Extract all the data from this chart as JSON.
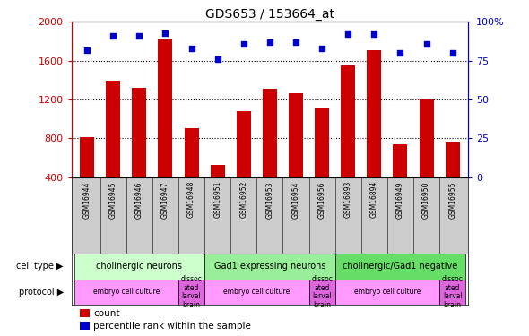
{
  "title": "GDS653 / 153664_at",
  "samples": [
    "GSM16944",
    "GSM16945",
    "GSM16946",
    "GSM16947",
    "GSM16948",
    "GSM16951",
    "GSM16952",
    "GSM16953",
    "GSM16954",
    "GSM16956",
    "GSM16893",
    "GSM16894",
    "GSM16949",
    "GSM16950",
    "GSM16955"
  ],
  "counts": [
    810,
    1390,
    1320,
    1830,
    910,
    525,
    1080,
    1315,
    1265,
    1120,
    1555,
    1705,
    740,
    1200,
    758
  ],
  "percentiles": [
    82,
    91,
    91,
    93,
    83,
    76,
    86,
    87,
    87,
    83,
    92,
    92,
    80,
    86,
    80
  ],
  "cell_types": [
    {
      "label": "cholinergic neurons",
      "start": 0,
      "end": 5,
      "color": "#ccffcc"
    },
    {
      "label": "Gad1 expressing neurons",
      "start": 5,
      "end": 10,
      "color": "#99ee99"
    },
    {
      "label": "cholinergic/Gad1 negative",
      "start": 10,
      "end": 15,
      "color": "#66dd66"
    }
  ],
  "protocols": [
    {
      "label": "embryo cell culture",
      "start": 0,
      "end": 4,
      "color": "#ff99ff"
    },
    {
      "label": "dissoc\nated\nlarval\nbrain",
      "start": 4,
      "end": 5,
      "color": "#dd66dd"
    },
    {
      "label": "embryo cell culture",
      "start": 5,
      "end": 9,
      "color": "#ff99ff"
    },
    {
      "label": "dissoc\nated\nlarval\nbrain",
      "start": 9,
      "end": 10,
      "color": "#dd66dd"
    },
    {
      "label": "embryo cell culture",
      "start": 10,
      "end": 14,
      "color": "#ff99ff"
    },
    {
      "label": "dissoc\nated\nlarval\nbrain",
      "start": 14,
      "end": 15,
      "color": "#dd66dd"
    }
  ],
  "bar_color": "#cc0000",
  "dot_color": "#0000cc",
  "left_axis_color": "#cc0000",
  "right_axis_color": "#0000cc",
  "ylim_left": [
    400,
    2000
  ],
  "ylim_right": [
    0,
    100
  ],
  "yticks_left": [
    400,
    800,
    1200,
    1600,
    2000
  ],
  "yticks_right": [
    0,
    25,
    50,
    75,
    100
  ],
  "grid_values": [
    800,
    1200,
    1600
  ],
  "xtick_bg": "#cccccc",
  "legend_count_label": "count",
  "legend_pct_label": "percentile rank within the sample"
}
